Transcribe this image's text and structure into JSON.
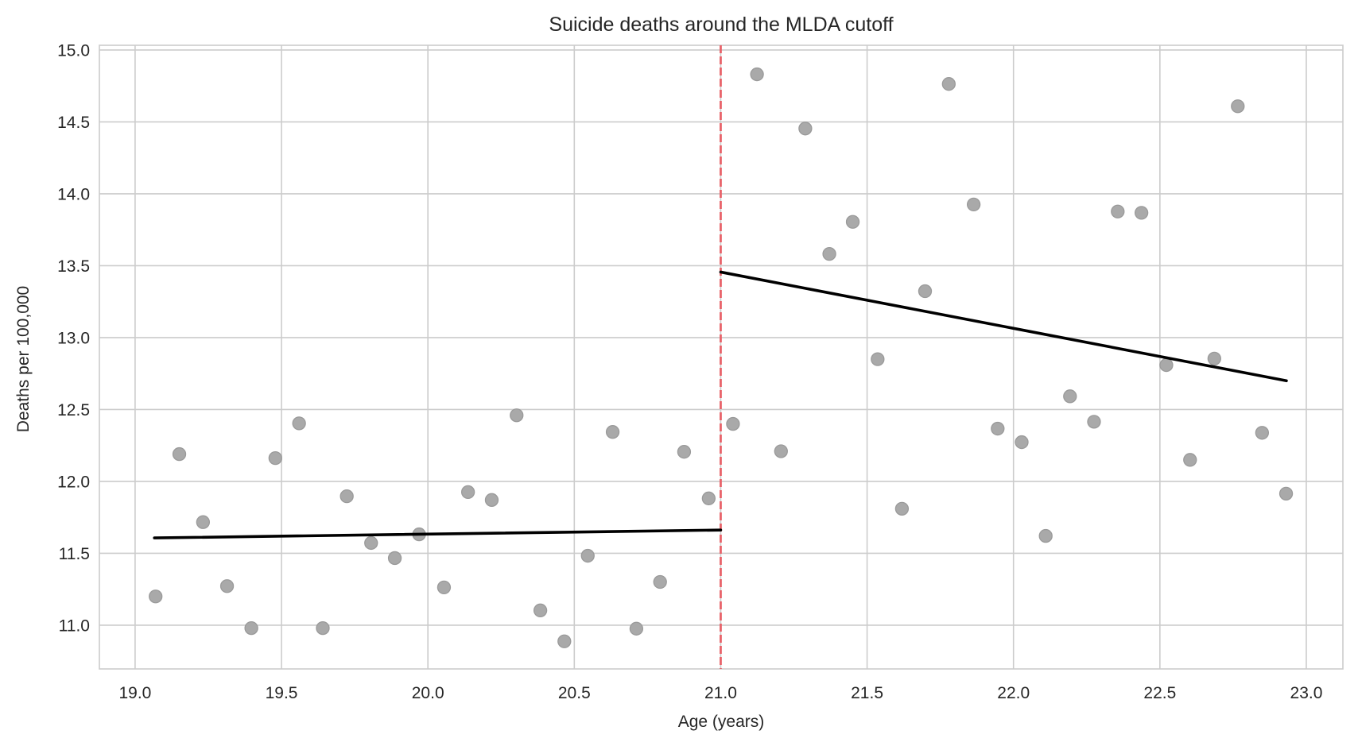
{
  "chart_data": {
    "type": "scatter",
    "title": "Suicide deaths around the MLDA cutoff",
    "xlabel": "Age (years)",
    "ylabel": "Deaths per 100,000",
    "xlim": [
      18.878,
      23.125
    ],
    "ylim": [
      10.696,
      15.033
    ],
    "xticks": [
      19.0,
      19.5,
      20.0,
      20.5,
      21.0,
      21.5,
      22.0,
      22.5,
      23.0
    ],
    "xtick_labels": [
      "19.0",
      "19.5",
      "20.0",
      "20.5",
      "21.0",
      "21.5",
      "22.0",
      "22.5",
      "23.0"
    ],
    "yticks": [
      11.0,
      11.5,
      12.0,
      12.5,
      13.0,
      13.5,
      14.0,
      14.5,
      15.0
    ],
    "ytick_labels": [
      "11.0",
      "11.5",
      "12.0",
      "12.5",
      "13.0",
      "13.5",
      "14.0",
      "14.5",
      "15.0"
    ],
    "grid": true,
    "legend": "none",
    "series": [
      {
        "name": "observed",
        "kind": "scatter",
        "color": "#a9a9a9",
        "x": [
          19.07,
          19.151,
          19.232,
          19.314,
          19.397,
          19.479,
          19.56,
          19.641,
          19.723,
          19.806,
          19.887,
          19.97,
          20.055,
          20.137,
          20.218,
          20.303,
          20.384,
          20.466,
          20.546,
          20.631,
          20.712,
          20.793,
          20.875,
          20.959,
          21.042,
          21.124,
          21.206,
          21.289,
          21.371,
          21.451,
          21.536,
          21.619,
          21.698,
          21.779,
          21.864,
          21.946,
          22.028,
          22.11,
          22.193,
          22.275,
          22.356,
          22.437,
          22.522,
          22.603,
          22.686,
          22.766,
          22.849,
          22.931
        ],
        "y": [
          11.2,
          12.19,
          11.717,
          11.272,
          10.98,
          12.162,
          12.404,
          10.98,
          11.897,
          11.572,
          11.467,
          11.632,
          11.263,
          11.926,
          11.871,
          12.46,
          11.103,
          10.888,
          11.483,
          12.344,
          10.976,
          11.301,
          12.206,
          11.882,
          12.4,
          14.831,
          12.21,
          14.454,
          13.582,
          13.805,
          12.85,
          11.81,
          13.323,
          14.764,
          13.926,
          12.367,
          12.273,
          11.621,
          12.592,
          12.415,
          13.877,
          13.868,
          12.809,
          12.15,
          12.854,
          14.609,
          12.338,
          11.915
        ]
      },
      {
        "name": "fit-below-21",
        "kind": "line",
        "color": "#000000",
        "x": [
          19.066,
          21.0
        ],
        "y": [
          11.607,
          11.662
        ]
      },
      {
        "name": "fit-above-21",
        "kind": "line",
        "color": "#000000",
        "x": [
          21.0,
          22.932
        ],
        "y": [
          13.456,
          12.7
        ]
      }
    ],
    "annotations": [
      {
        "type": "vline",
        "name": "MLDA cutoff",
        "x": 21.0,
        "style": "dashed",
        "color": "#e8636a"
      }
    ]
  }
}
